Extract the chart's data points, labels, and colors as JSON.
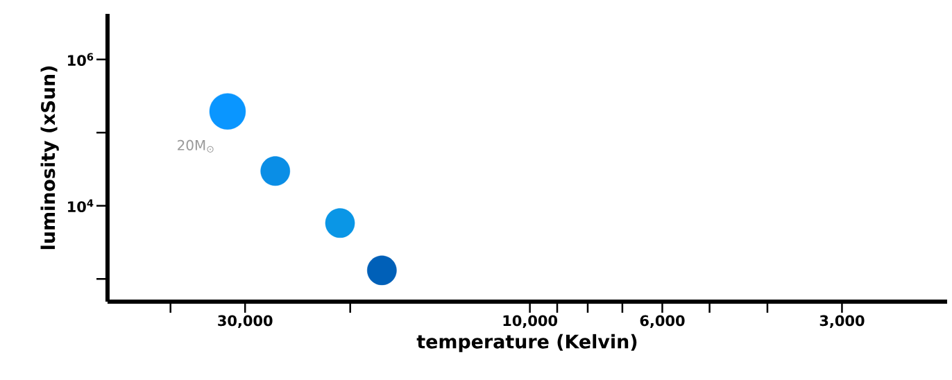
{
  "chart_data": {
    "type": "bubble",
    "xlabel": "temperature (Kelvin)",
    "ylabel": "luminosity (xSun)",
    "log": "xy",
    "x": [
      32100,
      26700,
      20800,
      17700
    ],
    "values": [
      195000,
      29800,
      5800,
      1310
    ],
    "sizes": [
      1,
      0.66,
      0.66,
      0.66
    ],
    "colors": [
      "#0a96ff",
      "#0a8ee6",
      "#0a96e6",
      "#0060b8"
    ],
    "xlim": [
      51000,
      2000
    ],
    "ylim": [
      490,
      4200000
    ],
    "xticks": [
      {
        "value": 40000,
        "label": null
      },
      {
        "value": 30000,
        "label": "30,000"
      },
      {
        "value": 20000,
        "label": null
      },
      {
        "value": 10000,
        "label": "10,000"
      },
      {
        "value": 9000,
        "label": null
      },
      {
        "value": 8000,
        "label": null
      },
      {
        "value": 7000,
        "label": null
      },
      {
        "value": 6000,
        "label": "6,000"
      },
      {
        "value": 5000,
        "label": null
      },
      {
        "value": 4000,
        "label": null
      },
      {
        "value": 3000,
        "label": "3,000"
      }
    ],
    "yticks": [
      {
        "value": 1000,
        "label": null
      },
      {
        "value": 10000,
        "label": "10$^{4}$"
      },
      {
        "value": 100000,
        "label": null
      },
      {
        "value": 1000000,
        "label": "10$^{6}$"
      }
    ],
    "annotations": [
      "20M$_{⊙}$"
    ]
  }
}
